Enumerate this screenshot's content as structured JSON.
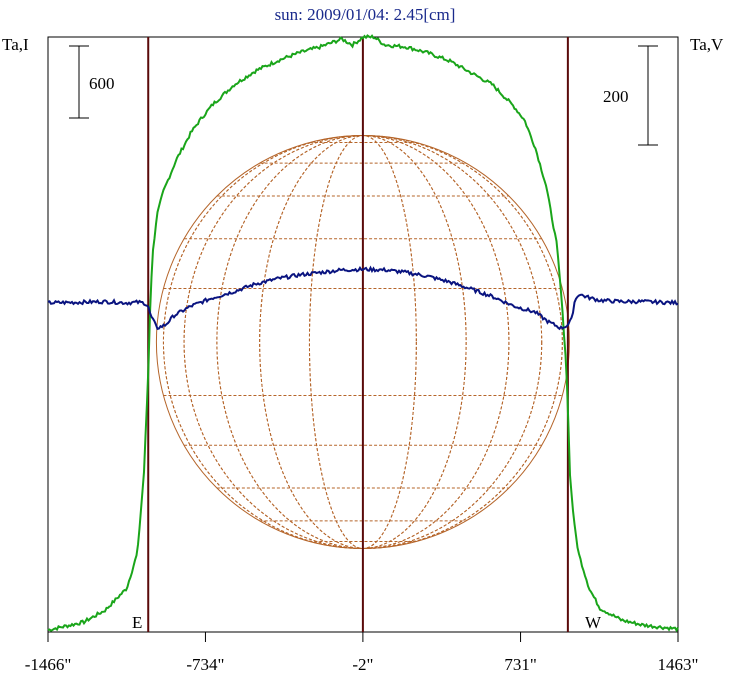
{
  "chart_data": {
    "type": "line",
    "title": "sun: 2009/01/04: 2.45[cm]",
    "left_axis_label": "Ta,I",
    "right_axis_label": "Ta,V",
    "left_scale_bar": "600",
    "right_scale_bar": "200",
    "marker_east": "E",
    "marker_west": "W",
    "x_ticks": [
      {
        "label": "-1466\"",
        "value": -1466
      },
      {
        "label": "-734\"",
        "value": -734
      },
      {
        "label": "-2\"",
        "value": -2
      },
      {
        "label": "731\"",
        "value": 731
      },
      {
        "label": "1463\"",
        "value": 1463
      }
    ],
    "xlim": [
      -1466,
      1463
    ],
    "vertical_lines_arcsec": [
      -1000,
      -2,
      951
    ],
    "solar_disk_radius_arcsec": 960,
    "series": [
      {
        "name": "Ta,I",
        "color": "#1aa51a",
        "axis": "left",
        "ylim": [
          0,
          3000
        ],
        "x": [
          -1466,
          -1300,
          -1200,
          -1100,
          -1050,
          -1020,
          -1000,
          -990,
          -980,
          -960,
          -930,
          -900,
          -870,
          -840,
          -800,
          -760,
          -700,
          -600,
          -500,
          -400,
          -300,
          -200,
          -100,
          -50,
          0,
          50,
          100,
          200,
          300,
          400,
          500,
          600,
          700,
          750,
          800,
          850,
          900,
          920,
          940,
          951,
          960,
          980,
          1000,
          1050,
          1100,
          1200,
          1300,
          1463
        ],
        "y": [
          10,
          50,
          110,
          220,
          400,
          800,
          1300,
          1680,
          1900,
          2100,
          2220,
          2300,
          2380,
          2440,
          2520,
          2580,
          2660,
          2760,
          2830,
          2880,
          2920,
          2950,
          2990,
          2960,
          3000,
          3000,
          2960,
          2950,
          2920,
          2880,
          2820,
          2760,
          2650,
          2580,
          2440,
          2250,
          1950,
          1700,
          1400,
          1150,
          800,
          550,
          400,
          220,
          120,
          60,
          35,
          15
        ]
      },
      {
        "name": "Ta,V",
        "color": "#0a1480",
        "axis": "right",
        "ylim": [
          -520,
          420
        ],
        "x": [
          -1466,
          -1300,
          -1200,
          -1100,
          -1050,
          -1020,
          -1000,
          -990,
          -980,
          -960,
          -920,
          -880,
          -800,
          -700,
          -600,
          -500,
          -400,
          -300,
          -200,
          -100,
          0,
          100,
          200,
          300,
          400,
          500,
          600,
          700,
          800,
          860,
          920,
          951,
          970,
          980,
          1000,
          1050,
          1100,
          1200,
          1300,
          1463
        ],
        "y": [
          0,
          1,
          2,
          0,
          1,
          0,
          -5,
          -20,
          -25,
          -40,
          -35,
          -20,
          -5,
          8,
          18,
          30,
          38,
          44,
          48,
          52,
          53,
          52,
          48,
          42,
          33,
          22,
          10,
          -5,
          -15,
          -30,
          -40,
          -35,
          -25,
          0,
          14,
          8,
          4,
          2,
          2,
          0
        ]
      }
    ]
  }
}
